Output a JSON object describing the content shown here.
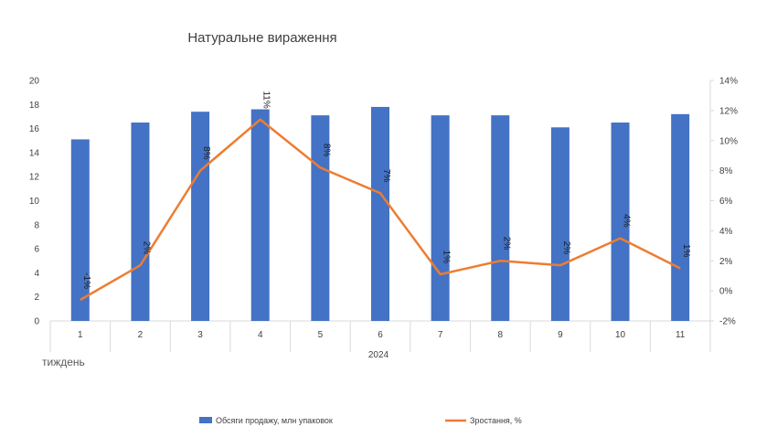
{
  "chart_data": {
    "type": "bar",
    "title": "Натуральне вираження",
    "xlabel": "тиждень",
    "x_group_label": "2024",
    "categories": [
      "1",
      "2",
      "3",
      "4",
      "5",
      "6",
      "7",
      "8",
      "9",
      "10",
      "11"
    ],
    "y_left": {
      "min": 0,
      "max": 20,
      "step": 2
    },
    "y_right": {
      "min": -2,
      "max": 14,
      "step": 2,
      "unit": "%"
    },
    "series": [
      {
        "name": "Обсяги продажу, млн упаковок",
        "type": "bar",
        "axis": "left",
        "color": "#4472C4",
        "values": [
          15.1,
          16.5,
          17.4,
          17.6,
          17.1,
          17.8,
          17.1,
          17.1,
          16.1,
          16.5,
          17.2
        ]
      },
      {
        "name": "Зростання, %",
        "type": "line",
        "axis": "right",
        "color": "#ED7D31",
        "values": [
          -0.6,
          1.7,
          8.0,
          11.4,
          8.2,
          6.5,
          1.1,
          2.0,
          1.7,
          3.5,
          1.5
        ],
        "data_labels": [
          "-1%",
          "2%",
          "8%",
          "11%",
          "8%",
          "7%",
          "1%",
          "2%",
          "2%",
          "4%",
          "1%"
        ]
      }
    ],
    "grid": false,
    "legend_position": "bottom"
  }
}
